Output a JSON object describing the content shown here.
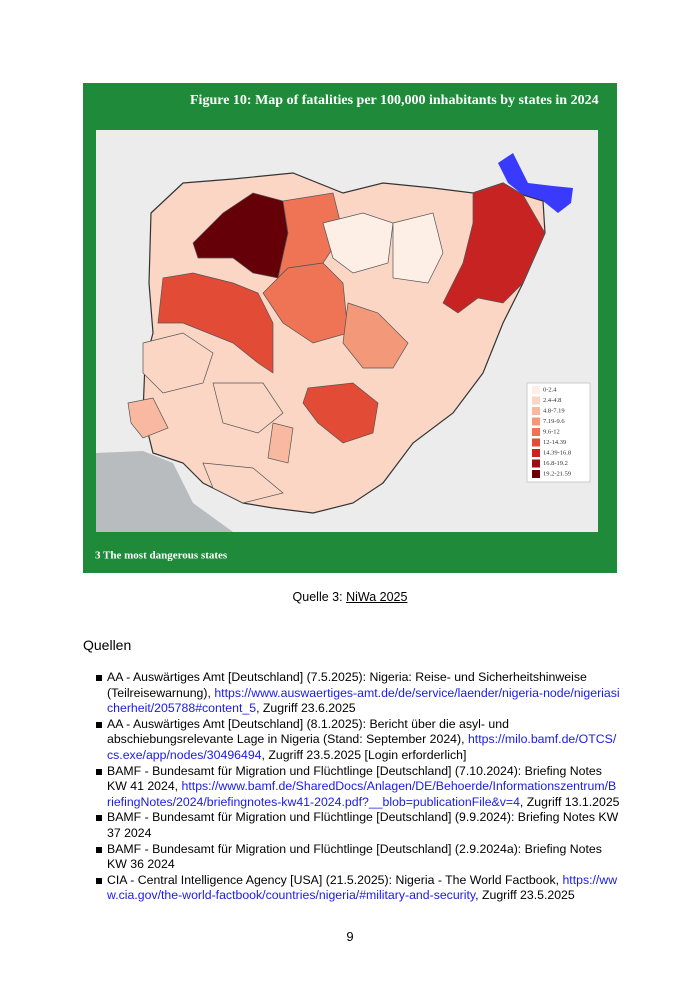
{
  "figure": {
    "title": "Figure 10: Map of fatalities per 100,000 inhabitants by states in 2024",
    "legend": [
      {
        "label": "0-2.4",
        "color": "#fdeee6"
      },
      {
        "label": "2.4-4.8",
        "color": "#fbd6c5"
      },
      {
        "label": "4.8-7.19",
        "color": "#f8b9a0"
      },
      {
        "label": "7.19-9.6",
        "color": "#f4987a"
      },
      {
        "label": "9.6-12",
        "color": "#ee7455"
      },
      {
        "label": "12-14.39",
        "color": "#e24b36"
      },
      {
        "label": "14.39-16.8",
        "color": "#c72323"
      },
      {
        "label": "16.8-19.2",
        "color": "#9a0d12"
      },
      {
        "label": "19.2-21.59",
        "color": "#650008"
      }
    ],
    "footer": "3 The most dangerous states"
  },
  "caption": {
    "prefix": "Quelle 3:",
    "link": "NiWa 2025"
  },
  "sources": {
    "heading": "Quellen",
    "items": [
      {
        "text": "AA - Auswärtiges Amt [Deutschland] (7.5.2025): Nigeria: Reise- und Sicherheitshinweise (Teilreisewarnung), ",
        "link": "https://www.auswaertiges-amt.de/de/service/laender/nigeria-node/nigeriasicherheit/205788#content_5",
        "after": ", Zugriff 23.6.2025"
      },
      {
        "text": "AA - Auswärtiges Amt [Deutschland] (8.1.2025): Bericht über die asyl- und abschiebungsrelevante Lage in Nigeria (Stand: September 2024), ",
        "link": "https://milo.bamf.de/OTCS/cs.exe/app/nodes/30496494",
        "after": ", Zugriff 23.5.2025 [Login erforderlich]"
      },
      {
        "text": "BAMF - Bundesamt für Migration und Flüchtlinge [Deutschland] (7.10.2024): Briefing Notes KW 41 2024, ",
        "link": "https://www.bamf.de/SharedDocs/Anlagen/DE/Behoerde/Informationszentrum/BriefingNotes/2024/briefingnotes-kw41-2024.pdf?__blob=publicationFile&v=4",
        "after": ", Zugriff 13.1.2025"
      },
      {
        "text": "BAMF - Bundesamt für Migration und Flüchtlinge [Deutschland] (9.9.2024): Briefing Notes KW 37 2024"
      },
      {
        "text": "BAMF - Bundesamt für Migration und Flüchtlinge [Deutschland] (2.9.2024a): Briefing Notes KW 36 2024"
      },
      {
        "text": "CIA - Central Intelligence Agency [USA] (21.5.2025): Nigeria - The World Factbook, ",
        "link": "https://www.cia.gov/the-world-factbook/countries/nigeria/#military-and-security",
        "after": ", Zugriff 23.5.2025"
      }
    ]
  },
  "page_number": "9"
}
